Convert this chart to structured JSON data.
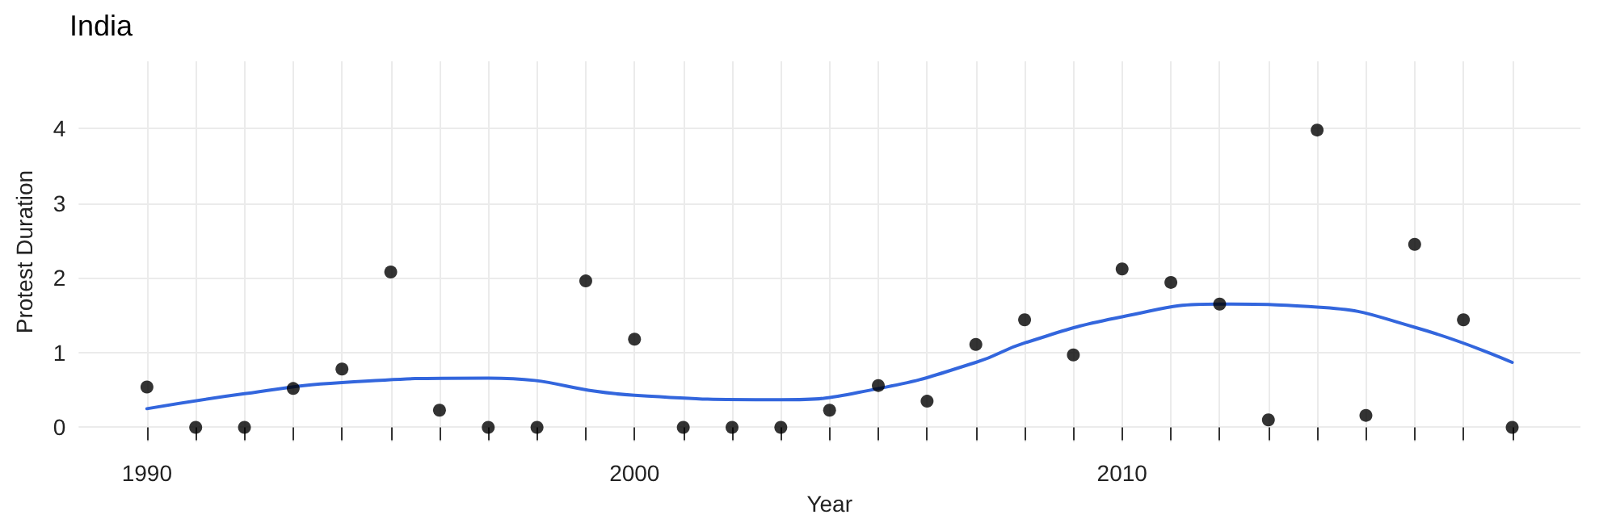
{
  "chart_data": {
    "type": "scatter",
    "title": "India",
    "xlabel": "Year",
    "ylabel": "Protest Duration",
    "xlim": [
      1988.6,
      2019.4
    ],
    "ylim": [
      -0.2,
      4.9
    ],
    "xticks": [
      1990,
      {
        "value": 1991,
        "label": null
      },
      {
        "value": 1992,
        "label": null
      },
      {
        "value": 1993,
        "label": null
      },
      {
        "value": 1994,
        "label": null
      },
      {
        "value": 1995,
        "label": null
      },
      {
        "value": 1996,
        "label": null
      },
      {
        "value": 1997,
        "label": null
      },
      {
        "value": 1998,
        "label": null
      },
      {
        "value": 1999,
        "label": null
      },
      2000,
      {
        "value": 2001,
        "label": null
      },
      {
        "value": 2002,
        "label": null
      },
      {
        "value": 2003,
        "label": null
      },
      {
        "value": 2004,
        "label": null
      },
      {
        "value": 2005,
        "label": null
      },
      {
        "value": 2006,
        "label": null
      },
      {
        "value": 2007,
        "label": null
      },
      {
        "value": 2008,
        "label": null
      },
      {
        "value": 2009,
        "label": null
      },
      2010,
      {
        "value": 2011,
        "label": null
      },
      {
        "value": 2012,
        "label": null
      },
      {
        "value": 2013,
        "label": null
      },
      {
        "value": 2014,
        "label": null
      },
      {
        "value": 2015,
        "label": null
      },
      {
        "value": 2016,
        "label": null
      },
      {
        "value": 2017,
        "label": null
      },
      {
        "value": 2018,
        "label": null
      }
    ],
    "yticks": [
      0,
      1,
      2,
      3,
      4
    ],
    "grid": true,
    "series": [
      {
        "marker": "circle",
        "color": "#000000",
        "x": [
          1990,
          1991,
          1992,
          1993,
          1994,
          1995,
          1996,
          1997,
          1998,
          1999,
          2000,
          2001,
          2002,
          2003,
          2004,
          2005,
          2006,
          2007,
          2008,
          2009,
          2010,
          2011,
          2012,
          2013,
          2014,
          2015,
          2016,
          2017,
          2018
        ],
        "values": [
          0.54,
          0,
          0,
          0.52,
          0.78,
          2.08,
          0.23,
          0,
          0,
          1.96,
          1.18,
          0,
          0,
          0,
          0.23,
          0.56,
          0.35,
          1.11,
          1.44,
          0.97,
          2.12,
          1.94,
          1.65,
          0.1,
          3.98,
          0.16,
          2.45,
          1.44,
          0
        ]
      },
      {
        "type": "line",
        "marker": "none",
        "line_style": "solid",
        "color": "#3366dd",
        "x": [
          1990,
          1992,
          1994,
          1997,
          2000,
          2003,
          2005,
          2007,
          2008,
          2010,
          2012,
          2014,
          2016,
          2018
        ],
        "values": [
          0.25,
          0.45,
          0.6,
          0.66,
          0.43,
          0.37,
          0.52,
          0.87,
          1.13,
          1.48,
          1.65,
          1.61,
          1.34,
          0.87
        ]
      }
    ]
  }
}
